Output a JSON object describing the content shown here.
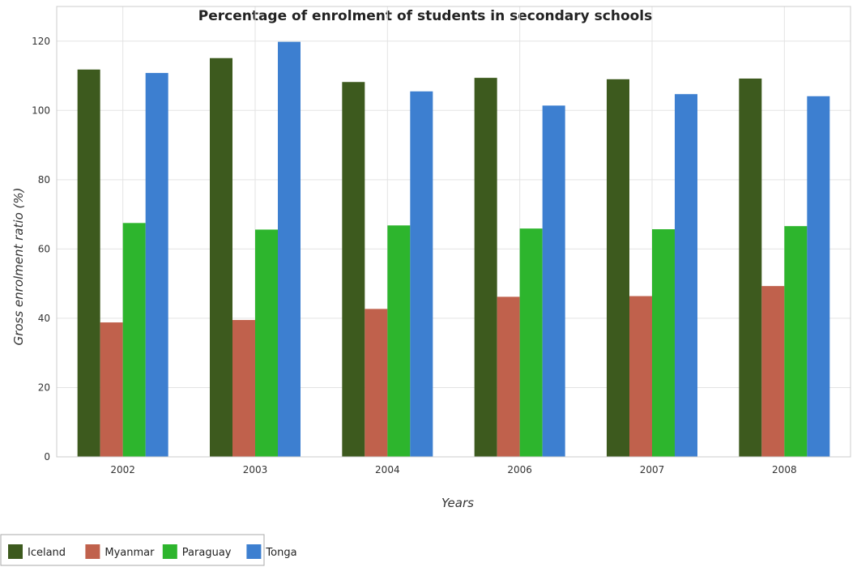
{
  "chart_data": {
    "type": "bar",
    "title": "Percentage of enrolment of students in secondary schools",
    "xlabel": "Years",
    "ylabel": "Gross enrolment ratio (%)",
    "categories": [
      "2002",
      "2003",
      "2004",
      "2006",
      "2007",
      "2008"
    ],
    "ylim": [
      0,
      130
    ],
    "yticks": [
      0,
      20,
      40,
      60,
      80,
      100,
      120
    ],
    "grid": true,
    "legend_position": "bottom-left",
    "series": [
      {
        "name": "Iceland",
        "color": "#3d5a1e",
        "values": [
          111.8,
          115.1,
          108.2,
          109.4,
          109.0,
          109.2
        ]
      },
      {
        "name": "Myanmar",
        "color": "#c0614c",
        "values": [
          38.8,
          39.5,
          42.7,
          46.2,
          46.4,
          49.3
        ]
      },
      {
        "name": "Paraguay",
        "color": "#2db52d",
        "values": [
          67.5,
          65.6,
          66.8,
          65.9,
          65.7,
          66.6
        ]
      },
      {
        "name": "Tonga",
        "color": "#3d7fd0",
        "values": [
          110.8,
          119.8,
          105.5,
          101.4,
          104.7,
          104.1
        ]
      }
    ]
  }
}
